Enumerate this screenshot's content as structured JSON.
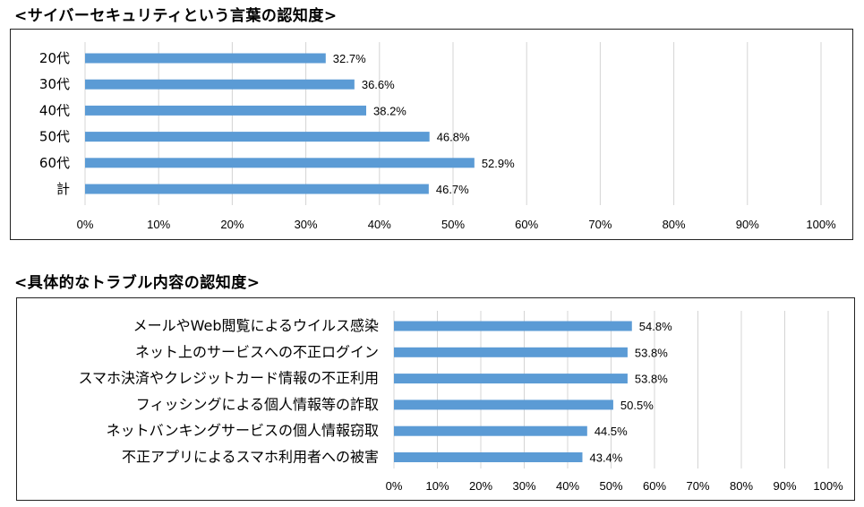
{
  "charts": [
    {
      "section_title": "<サイバーセキュリティという言葉の認知度>",
      "chart_data": {
        "type": "bar",
        "orientation": "horizontal",
        "categories": [
          "20代",
          "30代",
          "40代",
          "50代",
          "60代",
          "計"
        ],
        "values": [
          32.7,
          36.6,
          38.2,
          46.8,
          52.9,
          46.7
        ],
        "value_labels": [
          "32.7%",
          "36.6%",
          "38.2%",
          "46.8%",
          "52.9%",
          "46.7%"
        ],
        "xlim": [
          0,
          100
        ],
        "xticks": [
          "0%",
          "10%",
          "20%",
          "30%",
          "40%",
          "50%",
          "60%",
          "70%",
          "80%",
          "90%",
          "100%"
        ],
        "grid": true,
        "bar_color": "#5b9bd5"
      }
    },
    {
      "section_title": "<具体的なトラブル内容の認知度>",
      "chart_data": {
        "type": "bar",
        "orientation": "horizontal",
        "categories": [
          "メールやWeb閲覧によるウイルス感染",
          "ネット上のサービスへの不正ログイン",
          "スマホ決済やクレジットカード情報の不正利用",
          "フィッシングによる個人情報等の詐取",
          "ネットバンキングサービスの個人情報窃取",
          "不正アプリによるスマホ利用者への被害"
        ],
        "values": [
          54.8,
          53.8,
          53.8,
          50.5,
          44.5,
          43.4
        ],
        "value_labels": [
          "54.8%",
          "53.8%",
          "53.8%",
          "50.5%",
          "44.5%",
          "43.4%"
        ],
        "xlim": [
          0,
          100
        ],
        "xticks": [
          "0%",
          "10%",
          "20%",
          "30%",
          "40%",
          "50%",
          "60%",
          "70%",
          "80%",
          "90%",
          "100%"
        ],
        "grid": true,
        "bar_color": "#5b9bd5"
      }
    }
  ]
}
